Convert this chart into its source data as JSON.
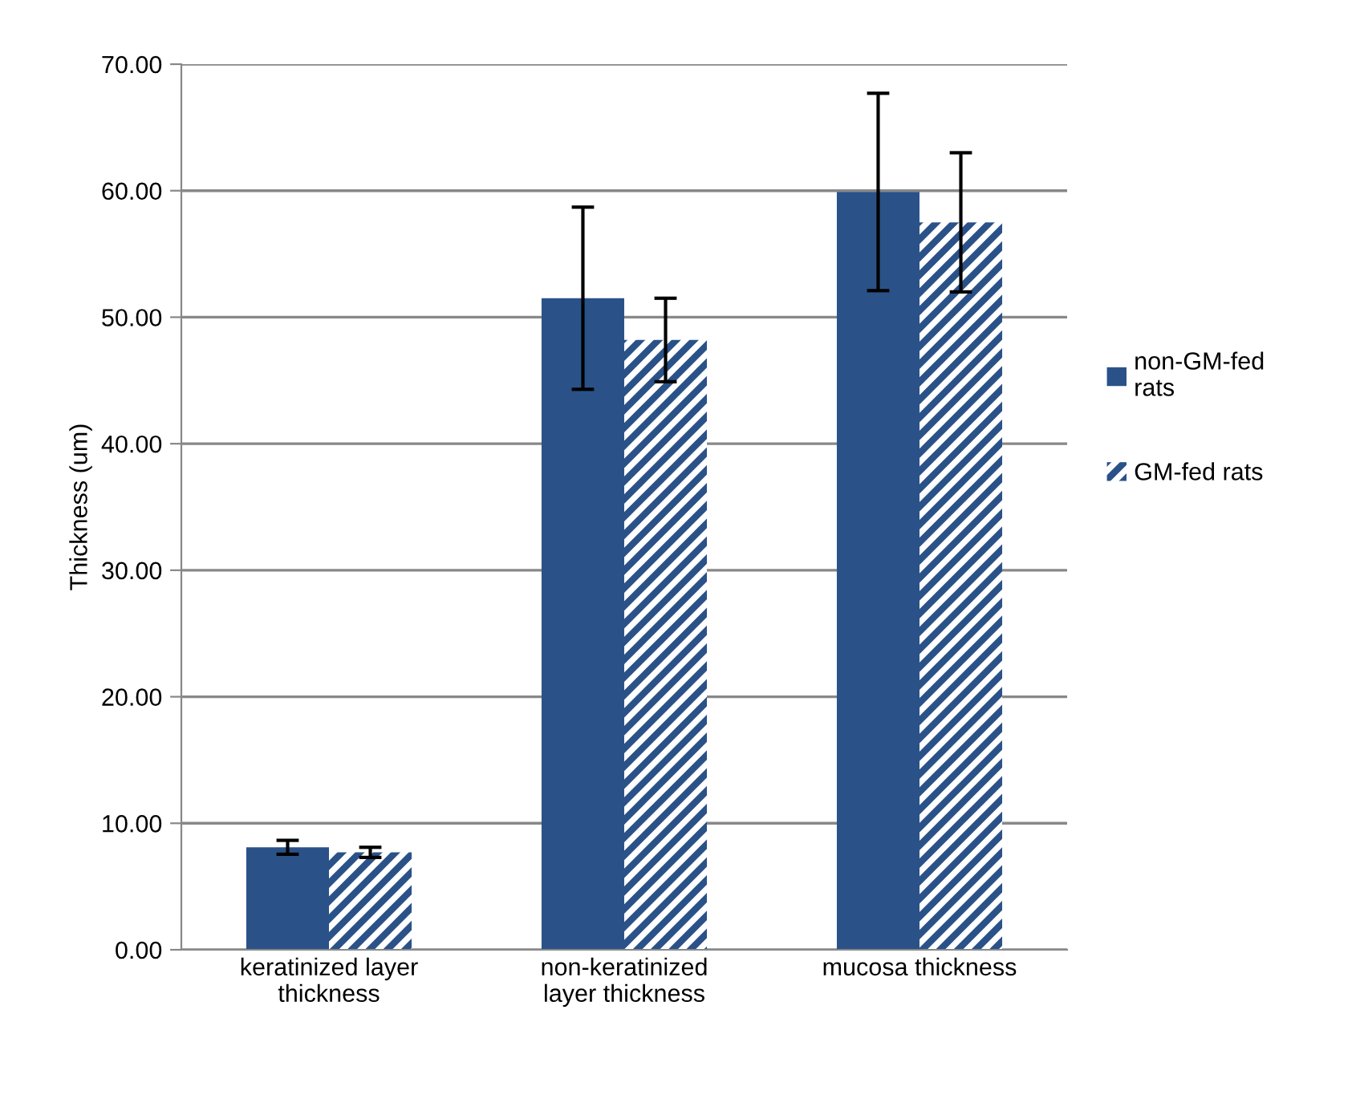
{
  "chart_data": {
    "type": "bar",
    "ylabel": "Thickness (um)",
    "categories": [
      "keratinized layer\nthickness",
      "non-keratinized\nlayer thickness",
      "mucosa thickness"
    ],
    "series": [
      {
        "name": "non-GM-fed\nrats",
        "color": "#2a5288",
        "values": [
          8.1,
          51.5,
          59.9
        ],
        "errors": [
          0.55,
          7.2,
          7.8
        ]
      },
      {
        "name": "GM-fed rats",
        "color": "#2a5288",
        "values": [
          7.7,
          48.2,
          57.5
        ],
        "errors": [
          0.4,
          3.3,
          5.5
        ]
      }
    ],
    "ylim": [
      0,
      70
    ],
    "yticks": [
      {
        "value": 0,
        "label": "0.00"
      },
      {
        "value": 10,
        "label": "10.00"
      },
      {
        "value": 20,
        "label": "20.00"
      },
      {
        "value": 30,
        "label": "30.00"
      },
      {
        "value": 40,
        "label": "40.00"
      },
      {
        "value": 50,
        "label": "50.00"
      },
      {
        "value": 60,
        "label": "60.00"
      },
      {
        "value": 70,
        "label": "70.00"
      }
    ],
    "grid": "y",
    "legend": "right"
  }
}
